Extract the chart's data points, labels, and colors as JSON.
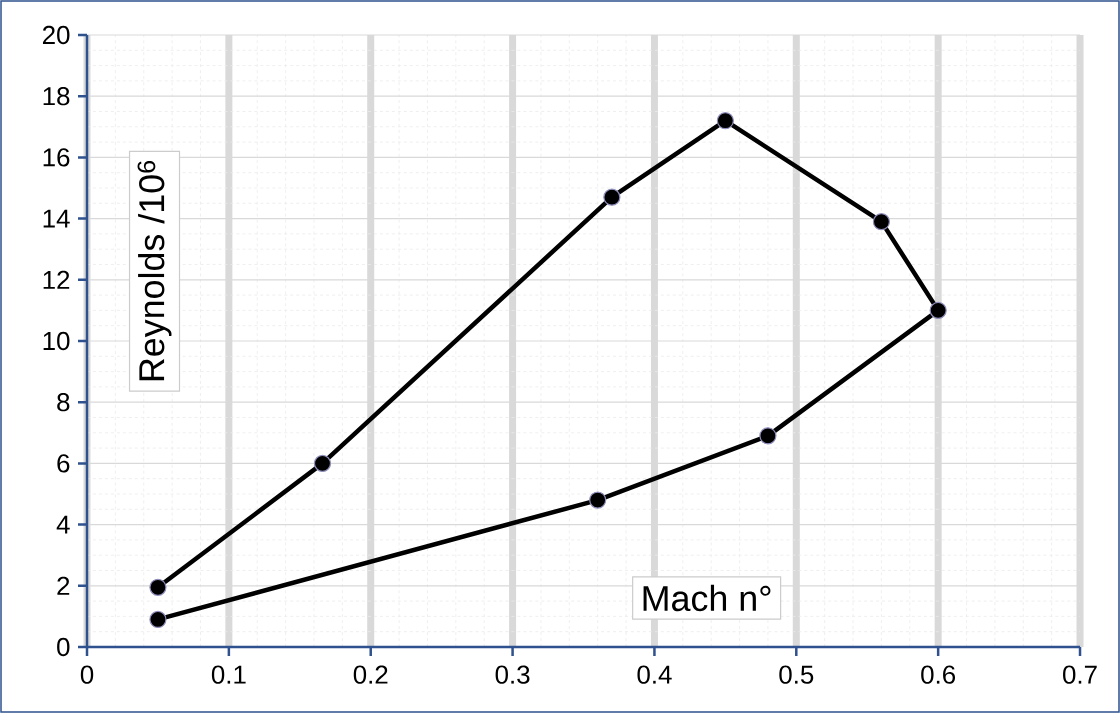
{
  "chart_data": {
    "type": "line",
    "xlabel": "Mach n°",
    "ylabel": "Reynolds /10$^{6}$",
    "x": [
      0.05,
      0.36,
      0.48,
      0.6,
      0.56,
      0.45,
      0.37,
      0.166,
      0.05
    ],
    "series": [
      {
        "color": "#000000",
        "values": [
          0.9,
          4.8,
          6.9,
          11.0,
          13.9,
          17.2,
          14.7,
          6.0,
          1.95
        ]
      }
    ],
    "xlim": [
      0,
      0.7
    ],
    "ylim": [
      0,
      20
    ],
    "xticks": [
      0,
      0.1,
      0.2,
      0.3,
      0.4,
      0.5,
      0.6,
      0.7
    ],
    "yticks": [
      0,
      2,
      4,
      6,
      8,
      10,
      12,
      14,
      16,
      18,
      20
    ],
    "grid": true,
    "marker": "circle",
    "line_style": "solid"
  }
}
